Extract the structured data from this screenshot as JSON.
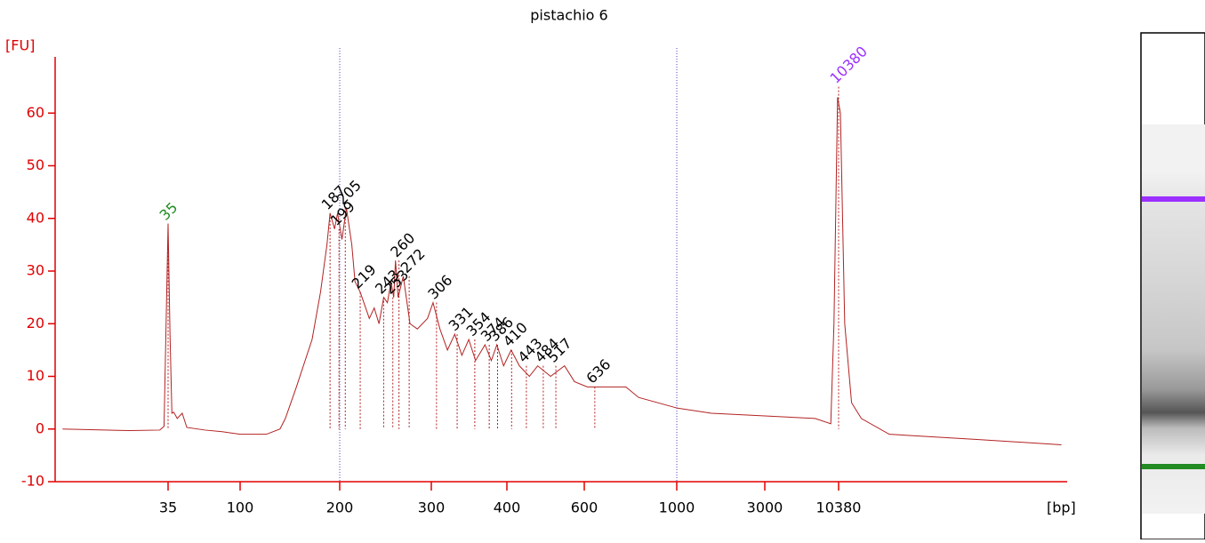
{
  "chart_data": {
    "type": "line",
    "title": "pistachio 6",
    "x_label": "[bp]",
    "y_label": "[FU]",
    "xlim": [
      7,
      480000
    ],
    "xticks": [
      35,
      100,
      200,
      300,
      400,
      600,
      1000,
      3000,
      10380
    ],
    "ylim": [
      -10,
      70
    ],
    "yticks": [
      -10,
      0,
      10,
      20,
      30,
      40,
      50,
      60
    ],
    "axis_color": "#e00000",
    "series": [
      {
        "color": "#b22222",
        "x": [
          7.5,
          20,
          31,
          33,
          34,
          35,
          36,
          37,
          38,
          40,
          43,
          46,
          60,
          77,
          100,
          120,
          132,
          137,
          148,
          165,
          175,
          183,
          187,
          193,
          197,
          202,
          206,
          211,
          214,
          219,
          228,
          233,
          238,
          243,
          247,
          251,
          254,
          256,
          259,
          265,
          273,
          282,
          295,
          302,
          310,
          319,
          328,
          337,
          346,
          355,
          368,
          377,
          385,
          395,
          409,
          427,
          450,
          470,
          503,
          541,
          570,
          610,
          700,
          755,
          810,
          1000,
          1540,
          3000,
          7000,
          9100,
          9600,
          10200,
          10700,
          11500,
          12900,
          15200,
          24300,
          109000,
          436000
        ],
        "values": [
          0,
          -0.3,
          -0.2,
          0.5,
          20,
          39,
          18,
          3,
          3.2,
          2,
          3,
          0.3,
          -0.2,
          -0.5,
          -1,
          -1,
          0,
          2,
          8,
          17,
          26,
          35,
          41,
          38,
          41,
          36,
          42,
          35,
          28,
          26,
          21,
          23,
          20,
          25,
          24,
          28,
          25,
          32,
          25,
          29,
          20,
          19,
          21,
          24,
          19,
          15,
          18,
          14,
          17,
          13,
          16,
          13,
          16,
          12,
          15,
          12,
          10,
          12,
          10,
          12,
          9,
          8,
          8,
          8,
          6,
          4,
          3,
          2.5,
          2,
          1,
          20,
          63,
          60,
          20,
          5,
          2,
          -1,
          -2,
          -3
        ]
      }
    ],
    "peaks": {
      "x": [
        35,
        187,
        199,
        205,
        219,
        243,
        253,
        260,
        272,
        306,
        331,
        354,
        374,
        386,
        410,
        443,
        484,
        517,
        636,
        10380
      ],
      "y": [
        39,
        41,
        38,
        42,
        26,
        25,
        25,
        32,
        29,
        24,
        18,
        17,
        16,
        16,
        15,
        12,
        12,
        12,
        8,
        65
      ],
      "colors": [
        "#228b22",
        "#000000",
        "#000000",
        "#000000",
        "#000000",
        "#000000",
        "#000000",
        "#000000",
        "#000000",
        "#000000",
        "#000000",
        "#000000",
        "#000000",
        "#000000",
        "#000000",
        "#000000",
        "#000000",
        "#000000",
        "#000000",
        "#9b30ff"
      ]
    },
    "vlines": {
      "x": [
        200,
        1000
      ],
      "color": "#4444cc"
    }
  }
}
